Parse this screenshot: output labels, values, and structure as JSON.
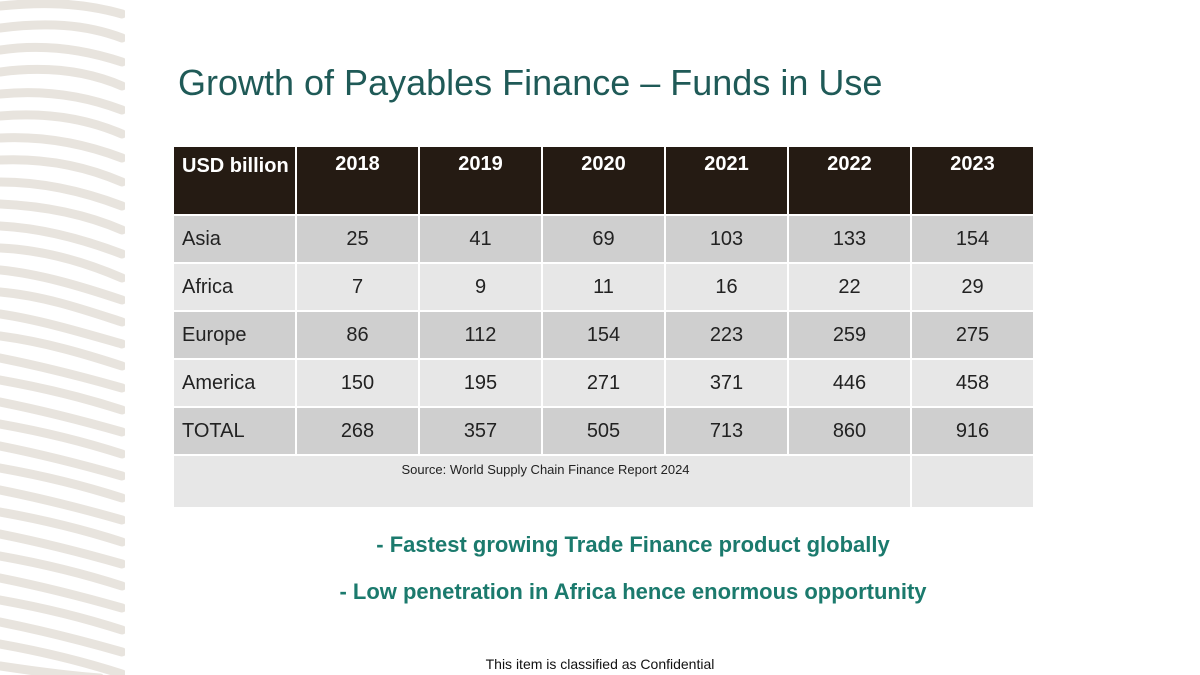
{
  "title": "Growth of Payables Finance – Funds in Use",
  "table": {
    "corner_header": "USD billion",
    "years": [
      "2018",
      "2019",
      "2020",
      "2021",
      "2022",
      "2023"
    ],
    "rows": [
      {
        "label": "Asia",
        "values": [
          "25",
          "41",
          "69",
          "103",
          "133",
          "154"
        ]
      },
      {
        "label": "Africa",
        "values": [
          "7",
          "9",
          "11",
          "16",
          "22",
          "29"
        ]
      },
      {
        "label": "Europe",
        "values": [
          "86",
          "112",
          "154",
          "223",
          "259",
          "275"
        ]
      },
      {
        "label": "America",
        "values": [
          "150",
          "195",
          "271",
          "371",
          "446",
          "458"
        ]
      },
      {
        "label": "TOTAL",
        "values": [
          "268",
          "357",
          "505",
          "713",
          "860",
          "916"
        ]
      }
    ],
    "source": "Source: World Supply Chain Finance Report 2024"
  },
  "bullets": [
    "- Fastest growing Trade Finance product globally",
    "- Low penetration in Africa hence enormous opportunity"
  ],
  "footer": "This item is classified as Confidential",
  "colors": {
    "title": "#1f5a57",
    "header_bg": "#251b13",
    "row_dark": "#cfcfcf",
    "row_light": "#e7e7e7",
    "bullet_text": "#1b7a6d"
  }
}
